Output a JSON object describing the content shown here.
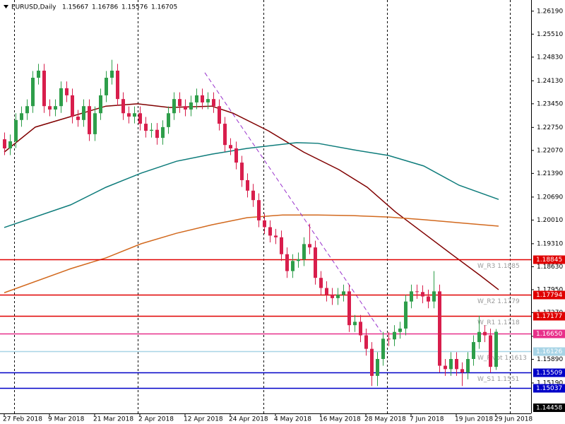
{
  "chart_data": {
    "type": "candlestick",
    "symbol": "EURUSD,Daily",
    "ylim": [
      1.1429,
      1.2652
    ],
    "yticks": [
      {
        "value": 1.2619,
        "label": "1.26190"
      },
      {
        "value": 1.2551,
        "label": "1.25510"
      },
      {
        "value": 1.2483,
        "label": "1.24830"
      },
      {
        "value": 1.2413,
        "label": "1.24130"
      },
      {
        "value": 1.2345,
        "label": "1.23450"
      },
      {
        "value": 1.2275,
        "label": "1.22750"
      },
      {
        "value": 1.2207,
        "label": "1.22070"
      },
      {
        "value": 1.2139,
        "label": "1.21390"
      },
      {
        "value": 1.2069,
        "label": "1.20690"
      },
      {
        "value": 1.2001,
        "label": "1.20010"
      },
      {
        "value": 1.1931,
        "label": "1.19310"
      },
      {
        "value": 1.1863,
        "label": "1.18630"
      },
      {
        "value": 1.1795,
        "label": "1.17950"
      },
      {
        "value": 1.1727,
        "label": "1.17270"
      },
      {
        "value": 1.1657,
        "label": "1.16570"
      },
      {
        "value": 1.1589,
        "label": "1.15890"
      },
      {
        "value": 1.1519,
        "label": "1.15190"
      }
    ],
    "categories": [
      "27 Feb 2018",
      null,
      null,
      null,
      null,
      null,
      null,
      null,
      "9 Mar 2018",
      null,
      null,
      null,
      null,
      null,
      null,
      null,
      "21 Mar 2018",
      null,
      null,
      null,
      null,
      null,
      null,
      null,
      "2 Apr 2018",
      null,
      null,
      null,
      null,
      null,
      null,
      null,
      "12 Apr 2018",
      null,
      null,
      null,
      null,
      null,
      null,
      null,
      "24 Apr 2018",
      null,
      null,
      null,
      null,
      null,
      null,
      null,
      "4 May 2018",
      null,
      null,
      null,
      null,
      null,
      null,
      null,
      "16 May 2018",
      null,
      null,
      null,
      null,
      null,
      null,
      null,
      "28 May 2018",
      null,
      null,
      null,
      null,
      null,
      null,
      null,
      "7 Jun 2018",
      null,
      null,
      null,
      null,
      null,
      null,
      null,
      "19 Jun 2018",
      null,
      null,
      null,
      null,
      null,
      null,
      "29 Jun 2018"
    ],
    "up_color": "#2e9e4a",
    "down_color": "#d81e4c",
    "candles": [
      [
        1.224,
        1.226,
        1.2193,
        1.2213
      ],
      [
        1.2213,
        1.2254,
        1.2193,
        1.2234
      ],
      [
        1.2234,
        1.2317,
        1.2214,
        1.2297
      ],
      [
        1.2297,
        1.2337,
        1.2277,
        1.2317
      ],
      [
        1.2317,
        1.2358,
        1.2297,
        1.2338
      ],
      [
        1.2338,
        1.2442,
        1.2318,
        1.2422
      ],
      [
        1.2422,
        1.2463,
        1.2402,
        1.2443
      ],
      [
        1.2443,
        1.2463,
        1.2318,
        1.2338
      ],
      [
        1.2338,
        1.2358,
        1.2308,
        1.2328
      ],
      [
        1.2328,
        1.2358,
        1.2308,
        1.2338
      ],
      [
        1.2338,
        1.2411,
        1.2318,
        1.2391
      ],
      [
        1.2391,
        1.2411,
        1.235,
        1.237
      ],
      [
        1.237,
        1.239,
        1.2287,
        1.2307
      ],
      [
        1.2307,
        1.2327,
        1.2277,
        1.2297
      ],
      [
        1.2297,
        1.2358,
        1.2277,
        1.2338
      ],
      [
        1.2338,
        1.2358,
        1.2235,
        1.2255
      ],
      [
        1.2255,
        1.2337,
        1.2235,
        1.2317
      ],
      [
        1.2317,
        1.239,
        1.2297,
        1.237
      ],
      [
        1.237,
        1.2442,
        1.235,
        1.2422
      ],
      [
        1.2422,
        1.2475,
        1.2402,
        1.2443
      ],
      [
        1.2443,
        1.2463,
        1.2339,
        1.2359
      ],
      [
        1.2359,
        1.2379,
        1.2297,
        1.2317
      ],
      [
        1.2317,
        1.2337,
        1.2287,
        1.2307
      ],
      [
        1.2307,
        1.2337,
        1.2287,
        1.2317
      ],
      [
        1.2317,
        1.2337,
        1.2266,
        1.2286
      ],
      [
        1.2286,
        1.2306,
        1.2245,
        1.2265
      ],
      [
        1.2265,
        1.2288,
        1.2245,
        1.2268
      ],
      [
        1.2268,
        1.2288,
        1.2224,
        1.2244
      ],
      [
        1.2244,
        1.2296,
        1.2224,
        1.2276
      ],
      [
        1.2276,
        1.2337,
        1.2256,
        1.2317
      ],
      [
        1.2317,
        1.2379,
        1.2297,
        1.2359
      ],
      [
        1.2359,
        1.2379,
        1.2318,
        1.2338
      ],
      [
        1.2338,
        1.2358,
        1.2308,
        1.2328
      ],
      [
        1.2328,
        1.2369,
        1.2308,
        1.2349
      ],
      [
        1.2349,
        1.239,
        1.2329,
        1.237
      ],
      [
        1.237,
        1.239,
        1.2329,
        1.2349
      ],
      [
        1.2349,
        1.2379,
        1.2329,
        1.2359
      ],
      [
        1.2359,
        1.2379,
        1.2318,
        1.2338
      ],
      [
        1.2338,
        1.2358,
        1.2266,
        1.2286
      ],
      [
        1.2286,
        1.2306,
        1.2203,
        1.2223
      ],
      [
        1.2223,
        1.2243,
        1.2193,
        1.2213
      ],
      [
        1.2213,
        1.2233,
        1.2151,
        1.2171
      ],
      [
        1.2171,
        1.2191,
        1.2099,
        1.2119
      ],
      [
        1.2119,
        1.2139,
        1.2068,
        1.2088
      ],
      [
        1.2088,
        1.2108,
        1.204,
        1.206
      ],
      [
        1.206,
        1.208,
        1.198,
        1.2
      ],
      [
        1.2,
        1.202,
        1.196,
        1.198
      ],
      [
        1.198,
        1.2,
        1.1935,
        1.1955
      ],
      [
        1.1955,
        1.1975,
        1.193,
        1.195
      ],
      [
        1.195,
        1.197,
        1.188,
        1.19
      ],
      [
        1.19,
        1.192,
        1.183,
        1.185
      ],
      [
        1.185,
        1.19,
        1.183,
        1.188
      ],
      [
        1.188,
        1.1905,
        1.186,
        1.1885
      ],
      [
        1.1885,
        1.195,
        1.1865,
        1.193
      ],
      [
        1.193,
        1.199,
        1.19,
        1.192
      ],
      [
        1.192,
        1.194,
        1.181,
        1.183
      ],
      [
        1.183,
        1.185,
        1.178,
        1.18
      ],
      [
        1.18,
        1.182,
        1.176,
        1.178
      ],
      [
        1.178,
        1.18,
        1.175,
        1.177
      ],
      [
        1.177,
        1.18,
        1.175,
        1.178
      ],
      [
        1.178,
        1.181,
        1.176,
        1.179
      ],
      [
        1.179,
        1.181,
        1.167,
        1.169
      ],
      [
        1.169,
        1.172,
        1.167,
        1.17
      ],
      [
        1.17,
        1.172,
        1.164,
        1.166
      ],
      [
        1.166,
        1.168,
        1.16,
        1.162
      ],
      [
        1.162,
        1.164,
        1.151,
        1.154
      ],
      [
        1.154,
        1.161,
        1.151,
        1.159
      ],
      [
        1.159,
        1.167,
        1.157,
        1.165
      ],
      [
        1.165,
        1.167,
        1.1628,
        1.1648
      ],
      [
        1.1648,
        1.169,
        1.1628,
        1.167
      ],
      [
        1.167,
        1.17,
        1.165,
        1.168
      ],
      [
        1.168,
        1.178,
        1.166,
        1.176
      ],
      [
        1.176,
        1.181,
        1.174,
        1.179
      ],
      [
        1.179,
        1.181,
        1.1768,
        1.1788
      ],
      [
        1.1788,
        1.1808,
        1.1755,
        1.1775
      ],
      [
        1.1775,
        1.1795,
        1.174,
        1.176
      ],
      [
        1.176,
        1.185,
        1.174,
        1.179
      ],
      [
        1.179,
        1.181,
        1.155,
        1.157
      ],
      [
        1.157,
        1.159,
        1.154,
        1.156
      ],
      [
        1.156,
        1.161,
        1.154,
        1.159
      ],
      [
        1.159,
        1.161,
        1.154,
        1.156
      ],
      [
        1.156,
        1.158,
        1.151,
        1.155
      ],
      [
        1.155,
        1.161,
        1.153,
        1.159
      ],
      [
        1.159,
        1.166,
        1.157,
        1.164
      ],
      [
        1.164,
        1.1718,
        1.162,
        1.167
      ],
      [
        1.167,
        1.169,
        1.164,
        1.166
      ],
      [
        1.166,
        1.168,
        1.155,
        1.15667
      ],
      [
        1.15667,
        1.16786,
        1.15576,
        1.16705
      ]
    ],
    "indicators": [
      {
        "color": "#800000",
        "points": [
          [
            0,
            1.2202
          ],
          [
            5.5,
            1.2276
          ],
          [
            11.75,
            1.2307
          ],
          [
            18,
            1.2338
          ],
          [
            23.6,
            1.2345
          ],
          [
            29.25,
            1.2334
          ],
          [
            36.75,
            1.2338
          ],
          [
            40.5,
            1.2317
          ],
          [
            46.75,
            1.2265
          ],
          [
            53,
            1.2202
          ],
          [
            59.25,
            1.215
          ],
          [
            64.25,
            1.2098
          ],
          [
            69.25,
            1.2025
          ],
          [
            74.25,
            1.1962
          ],
          [
            79.25,
            1.1899
          ],
          [
            84.25,
            1.1837
          ],
          [
            87.5,
            1.1795
          ]
        ]
      },
      {
        "color": "#0e7c7b",
        "points": [
          [
            0,
            1.1979
          ],
          [
            11.75,
            1.2046
          ],
          [
            18,
            1.2098
          ],
          [
            24.25,
            1.214
          ],
          [
            30.5,
            1.2175
          ],
          [
            36.75,
            1.2196
          ],
          [
            43,
            1.2213
          ],
          [
            51.75,
            1.223
          ],
          [
            55.5,
            1.2228
          ],
          [
            61.75,
            1.2209
          ],
          [
            68,
            1.2192
          ],
          [
            74.25,
            1.2161
          ],
          [
            80.5,
            1.2104
          ],
          [
            87.5,
            1.2062
          ]
        ]
      },
      {
        "color": "#d2691e",
        "points": [
          [
            0,
            1.1786
          ],
          [
            11.75,
            1.1857
          ],
          [
            18,
            1.1889
          ],
          [
            24.25,
            1.1931
          ],
          [
            30.5,
            1.1962
          ],
          [
            36.75,
            1.1987
          ],
          [
            43,
            1.2008
          ],
          [
            49.25,
            1.2016
          ],
          [
            55.5,
            1.2016
          ],
          [
            61.75,
            1.2014
          ],
          [
            68,
            1.201
          ],
          [
            74.25,
            1.2002
          ],
          [
            80.5,
            1.1993
          ],
          [
            87.5,
            1.1983
          ]
        ]
      }
    ],
    "trendline": {
      "color": "#9932cc",
      "points": [
        [
          35.5,
          1.2437
        ],
        [
          66.75,
          1.1669
        ]
      ]
    },
    "levels": [
      {
        "price": {
          "value": 1.18845,
          "label": "1.18845"
        },
        "color": "#e00000",
        "text": "W_R3 1.1885"
      },
      {
        "price": {
          "value": 1.17794,
          "label": "1.17794"
        },
        "color": "#e00000",
        "text": "W_R2 1.1779"
      },
      {
        "price": {
          "value": 1.17177,
          "label": "1.17177"
        },
        "color": "#e00000",
        "text": "W_R1 1.1718"
      },
      {
        "price": {
          "value": 1.1665,
          "label": "1.16650"
        },
        "color": "#e8308a"
      },
      {
        "price": {
          "value": 1.16126,
          "label": "1.16126"
        },
        "color": "#a8d4e6",
        "text": "W_Pivot 1.1613"
      },
      {
        "price": {
          "value": 1.15509,
          "label": "1.15509"
        },
        "color": "#0000c8",
        "text": "W_S1 1.1551"
      },
      {
        "price": {
          "value": 1.15037,
          "label": "1.15037"
        },
        "color": "#0000c8"
      }
    ],
    "bottom_marker": {
      "value": 1.14458,
      "label": "1.14458"
    }
  }
}
